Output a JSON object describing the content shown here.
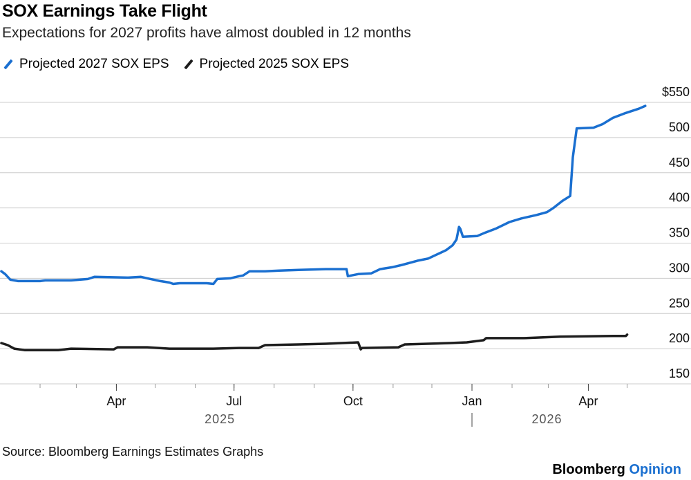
{
  "title": "SOX Earnings Take Flight",
  "subtitle": "Expectations for 2027 profits have almost doubled in 12 months",
  "source": "Source: Bloomberg Earnings Estimates Graphs",
  "brand": {
    "name": "Bloomberg",
    "suffix": "Opinion"
  },
  "colors": {
    "series2027": "#1a6fd0",
    "series2025": "#1d1d1d",
    "grid": "#cccccc",
    "axis": "#000000"
  },
  "chart_data": {
    "type": "line",
    "title": "SOX Earnings Take Flight",
    "subtitle": "Expectations for 2027 profits have almost doubled in 12 months",
    "ylim": [
      150,
      550
    ],
    "yticks": [
      150,
      200,
      250,
      300,
      350,
      400,
      450,
      500,
      550
    ],
    "ytick_labels": [
      "150",
      "200",
      "250",
      "300",
      "350",
      "400",
      "450",
      "500",
      "$550"
    ],
    "y_axis_side": "right",
    "xlim": [
      "2025-01-01",
      "2026-05-21"
    ],
    "xticks": [
      {
        "date": "2025-04-01",
        "label": "Apr"
      },
      {
        "date": "2025-07-01",
        "label": "Jul"
      },
      {
        "date": "2025-10-01",
        "label": "Oct"
      },
      {
        "date": "2026-01-01",
        "label": "Jan"
      },
      {
        "date": "2026-04-01",
        "label": "Apr"
      }
    ],
    "year_labels": [
      {
        "date": "2025-06-20",
        "label": "2025"
      },
      {
        "date": "2026-02-28",
        "label": "2026"
      }
    ],
    "legend_position": "top-left",
    "grid": true,
    "series": [
      {
        "name": "Projected 2027 SOX EPS",
        "points": [
          [
            "2025-01-02",
            310
          ],
          [
            "2025-01-05",
            306
          ],
          [
            "2025-01-09",
            298
          ],
          [
            "2025-01-15",
            296
          ],
          [
            "2025-02-01",
            296
          ],
          [
            "2025-02-05",
            297
          ],
          [
            "2025-02-25",
            297
          ],
          [
            "2025-03-10",
            299
          ],
          [
            "2025-03-15",
            302
          ],
          [
            "2025-04-10",
            301
          ],
          [
            "2025-04-20",
            302
          ],
          [
            "2025-04-25",
            300
          ],
          [
            "2025-05-05",
            296
          ],
          [
            "2025-05-12",
            294
          ],
          [
            "2025-05-15",
            292
          ],
          [
            "2025-05-20",
            293
          ],
          [
            "2025-06-10",
            293
          ],
          [
            "2025-06-15",
            292
          ],
          [
            "2025-06-18",
            299
          ],
          [
            "2025-06-28",
            300
          ],
          [
            "2025-07-05",
            303
          ],
          [
            "2025-07-08",
            304
          ],
          [
            "2025-07-13",
            310
          ],
          [
            "2025-07-25",
            310
          ],
          [
            "2025-08-05",
            311
          ],
          [
            "2025-08-20",
            312
          ],
          [
            "2025-09-10",
            313
          ],
          [
            "2025-09-26",
            313
          ],
          [
            "2025-09-27",
            303
          ],
          [
            "2025-10-05",
            306
          ],
          [
            "2025-10-15",
            307
          ],
          [
            "2025-10-22",
            313
          ],
          [
            "2025-11-01",
            316
          ],
          [
            "2025-11-08",
            319
          ],
          [
            "2025-11-20",
            325
          ],
          [
            "2025-11-28",
            328
          ],
          [
            "2025-12-05",
            334
          ],
          [
            "2025-12-12",
            340
          ],
          [
            "2025-12-17",
            347
          ],
          [
            "2025-12-20",
            355
          ],
          [
            "2025-12-22",
            373
          ],
          [
            "2025-12-23",
            370
          ],
          [
            "2025-12-25",
            359
          ],
          [
            "2026-01-05",
            360
          ],
          [
            "2026-01-10",
            364
          ],
          [
            "2026-01-20",
            371
          ],
          [
            "2026-01-30",
            380
          ],
          [
            "2026-02-08",
            385
          ],
          [
            "2026-02-20",
            390
          ],
          [
            "2026-02-28",
            394
          ],
          [
            "2026-03-05",
            400
          ],
          [
            "2026-03-12",
            410
          ],
          [
            "2026-03-18",
            417
          ],
          [
            "2026-03-20",
            472
          ],
          [
            "2026-03-23",
            513
          ],
          [
            "2026-04-05",
            514
          ],
          [
            "2026-04-12",
            519
          ],
          [
            "2026-04-20",
            528
          ],
          [
            "2026-04-30",
            535
          ],
          [
            "2026-05-10",
            541
          ],
          [
            "2026-05-15",
            545
          ]
        ]
      },
      {
        "name": "Projected 2025 SOX EPS",
        "points": [
          [
            "2025-01-02",
            208
          ],
          [
            "2025-01-07",
            205
          ],
          [
            "2025-01-12",
            200
          ],
          [
            "2025-01-20",
            198
          ],
          [
            "2025-02-15",
            198
          ],
          [
            "2025-02-25",
            200
          ],
          [
            "2025-03-30",
            199
          ],
          [
            "2025-04-02",
            202
          ],
          [
            "2025-04-25",
            202
          ],
          [
            "2025-05-12",
            200
          ],
          [
            "2025-06-15",
            200
          ],
          [
            "2025-07-05",
            201
          ],
          [
            "2025-07-20",
            201
          ],
          [
            "2025-07-25",
            205
          ],
          [
            "2025-08-20",
            206
          ],
          [
            "2025-09-10",
            207
          ],
          [
            "2025-10-05",
            209
          ],
          [
            "2025-10-07",
            199
          ],
          [
            "2025-10-08",
            201
          ],
          [
            "2025-11-05",
            202
          ],
          [
            "2025-11-10",
            206
          ],
          [
            "2025-12-15",
            208
          ],
          [
            "2025-12-28",
            209
          ],
          [
            "2026-01-10",
            212
          ],
          [
            "2026-01-12",
            215
          ],
          [
            "2026-02-10",
            215
          ],
          [
            "2026-03-10",
            217
          ],
          [
            "2026-04-20",
            218
          ],
          [
            "2026-04-30",
            218
          ],
          [
            "2026-05-01",
            220
          ]
        ]
      }
    ]
  }
}
